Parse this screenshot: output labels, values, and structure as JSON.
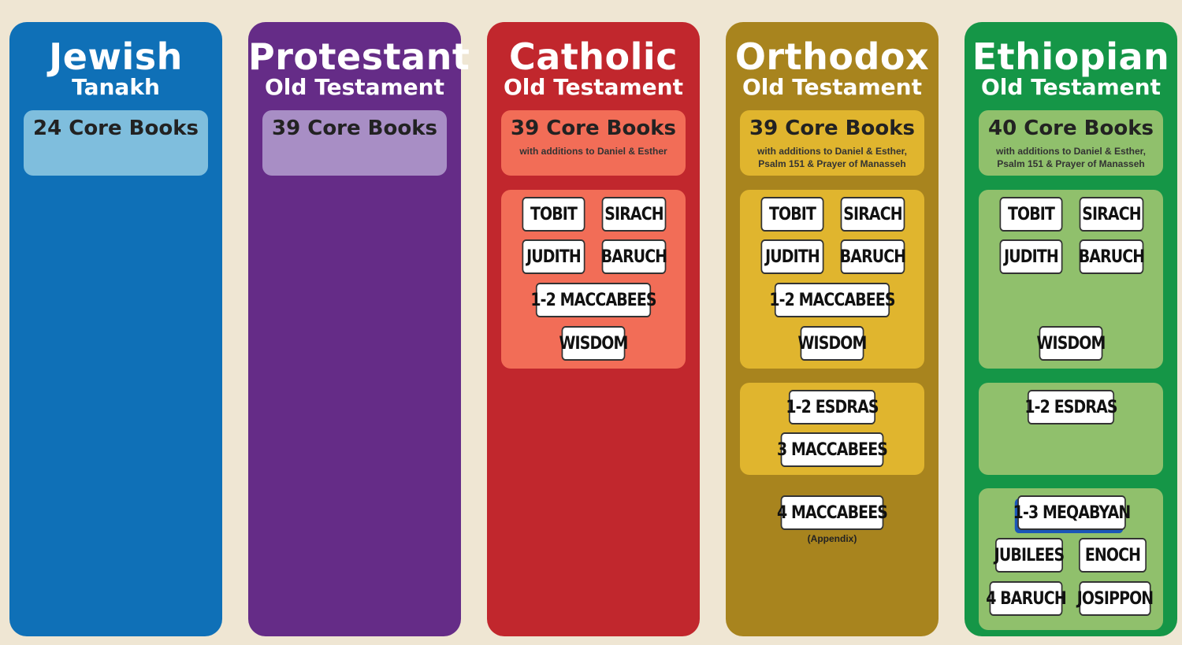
{
  "colors": {
    "background": "#efe6d3",
    "jewish": "#0f70b7",
    "protestant": "#652c87",
    "catholic": "#c1272d",
    "orthodox": "#a8841e",
    "ethiopian": "#159647"
  },
  "columns": {
    "jewish": {
      "title": "Jewish",
      "subtitle": "Tanakh",
      "core": "24 Core Books"
    },
    "protestant": {
      "title": "Protestant",
      "subtitle": "Old Testament",
      "core": "39 Core Books"
    },
    "catholic": {
      "title": "Catholic",
      "subtitle": "Old Testament",
      "core": "39 Core Books",
      "core_note": "with additions to Daniel & Esther",
      "books": [
        "TOBIT",
        "SIRACH",
        "JUDITH",
        "BARUCH",
        "1-2 MACCABEES",
        "WISDOM"
      ]
    },
    "orthodox": {
      "title": "Orthodox",
      "subtitle": "Old Testament",
      "core": "39 Core Books",
      "core_note": "with additions to Daniel & Esther, Psalm 151 & Prayer of Manasseh",
      "books": [
        "TOBIT",
        "SIRACH",
        "JUDITH",
        "BARUCH",
        "1-2 MACCABEES",
        "WISDOM"
      ],
      "extra_books": [
        "1-2 ESDRAS",
        "3 MACCABEES"
      ],
      "appendix_book": "4 MACCABEES",
      "appendix_label": "(Appendix)"
    },
    "ethiopian": {
      "title": "Ethiopian",
      "subtitle": "Old Testament",
      "core": "40 Core Books",
      "core_note": "with additions to Daniel & Esther, Psalm 151 & Prayer of Manasseh",
      "books": [
        "TOBIT",
        "SIRACH",
        "JUDITH",
        "BARUCH",
        "WISDOM"
      ],
      "extra_books": [
        "1-2 ESDRAS"
      ],
      "unique_books": [
        "1-3 MEQABYAN",
        "JUBILEES",
        "ENOCH",
        "4 BARUCH",
        "JOSIPPON"
      ]
    }
  }
}
